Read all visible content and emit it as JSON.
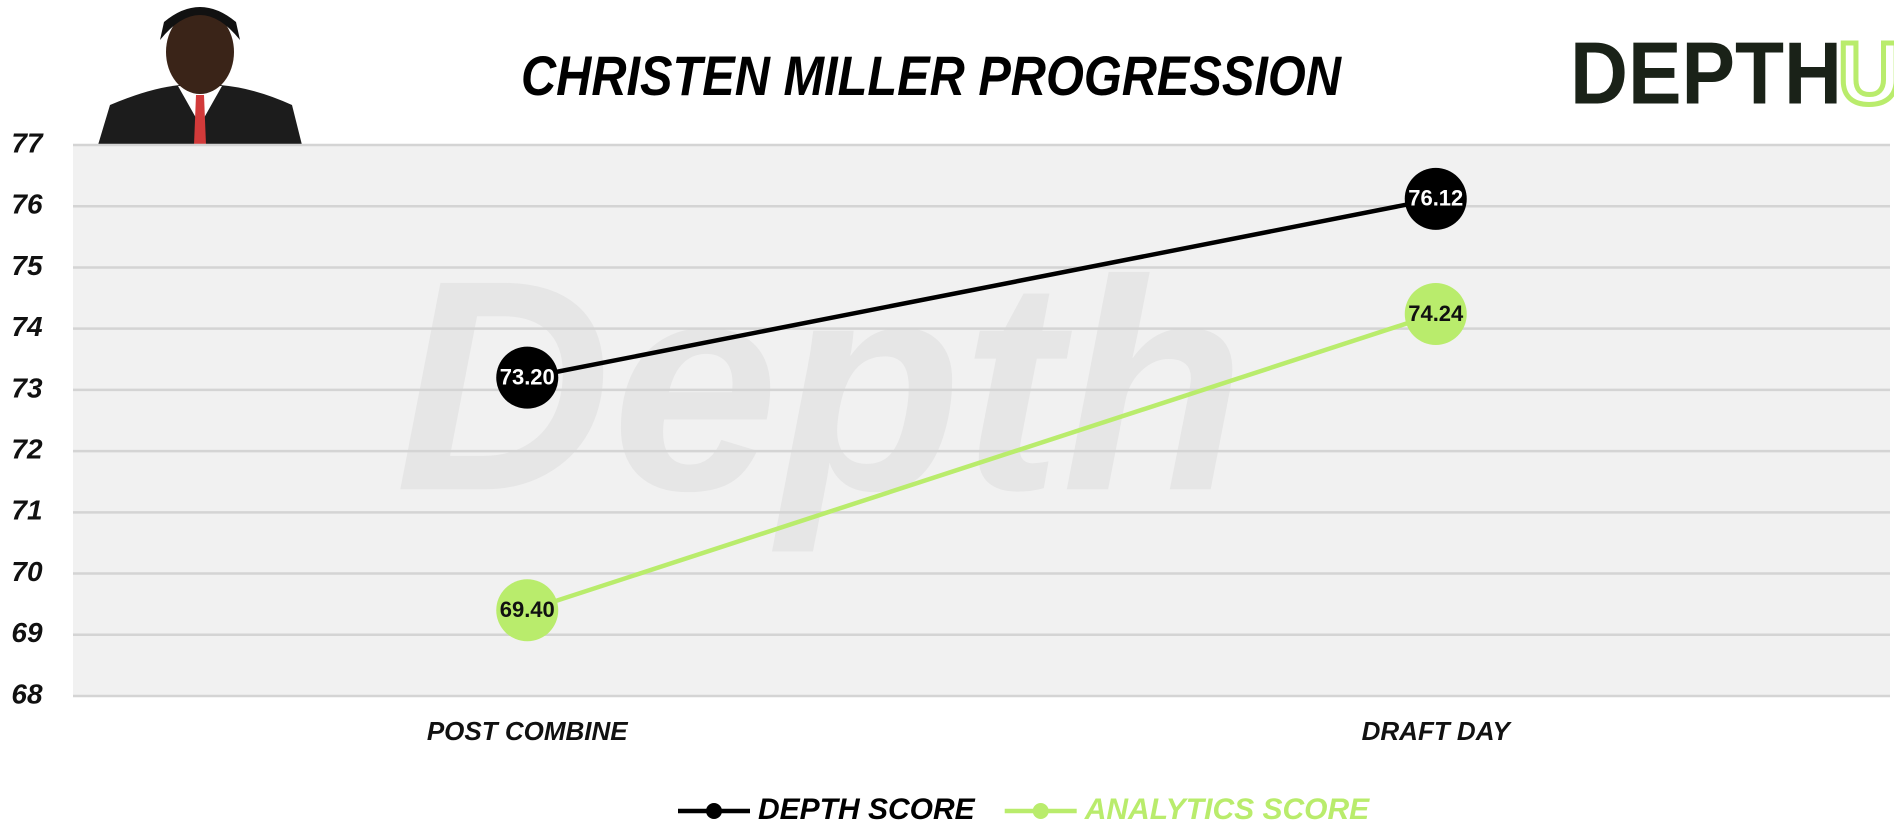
{
  "chart_data": {
    "type": "line",
    "title": "CHRISTEN MILLER PROGRESSION",
    "logo": [
      "DEPTH",
      "U"
    ],
    "watermark": "Depth",
    "categories": [
      "POST COMBINE",
      "DRAFT DAY"
    ],
    "series": [
      {
        "name": "DEPTH SCORE",
        "color": "#000000",
        "label_color": "#ffffff",
        "values": [
          73.2,
          76.12
        ],
        "value_labels": [
          "73.20",
          "76.12"
        ]
      },
      {
        "name": "ANALYTICS SCORE",
        "color": "#b9ec6c",
        "label_color": "#111111",
        "values": [
          69.4,
          74.24
        ],
        "value_labels": [
          "69.40",
          "74.24"
        ]
      }
    ],
    "ylim": [
      68,
      77
    ],
    "yticks": [
      68,
      69,
      70,
      71,
      72,
      73,
      74,
      75,
      76,
      77
    ],
    "grid": true
  }
}
